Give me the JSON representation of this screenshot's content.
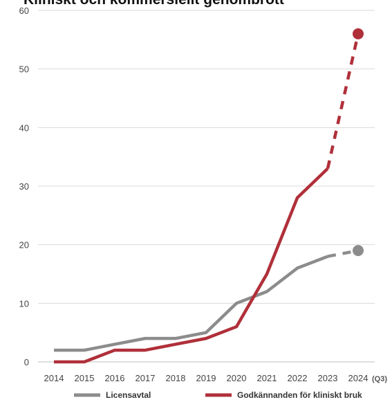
{
  "chart_data": {
    "type": "line",
    "title": "Kliniskt och kommersiellt genombrott",
    "x": [
      "2014",
      "2015",
      "2016",
      "2017",
      "2018",
      "2019",
      "2020",
      "2021",
      "2022",
      "2023",
      "2024"
    ],
    "x_suffix_last": "(Q3)",
    "ylim": [
      0,
      60
    ],
    "yticks": [
      0,
      10,
      20,
      30,
      40,
      50,
      60
    ],
    "grid": true,
    "legend_position": "bottom",
    "series": [
      {
        "name": "Licensavtal",
        "color": "#8c8c8c",
        "values": [
          2,
          2,
          3,
          4,
          4,
          5,
          10,
          12,
          16,
          18,
          19
        ],
        "dashed_last_segment": true
      },
      {
        "name": "Godkännanden för kliniskt bruk",
        "color": "#b0303a",
        "values": [
          0,
          0,
          2,
          2,
          3,
          4,
          6,
          15,
          28,
          33,
          56
        ],
        "dashed_last_segment": true
      }
    ]
  }
}
